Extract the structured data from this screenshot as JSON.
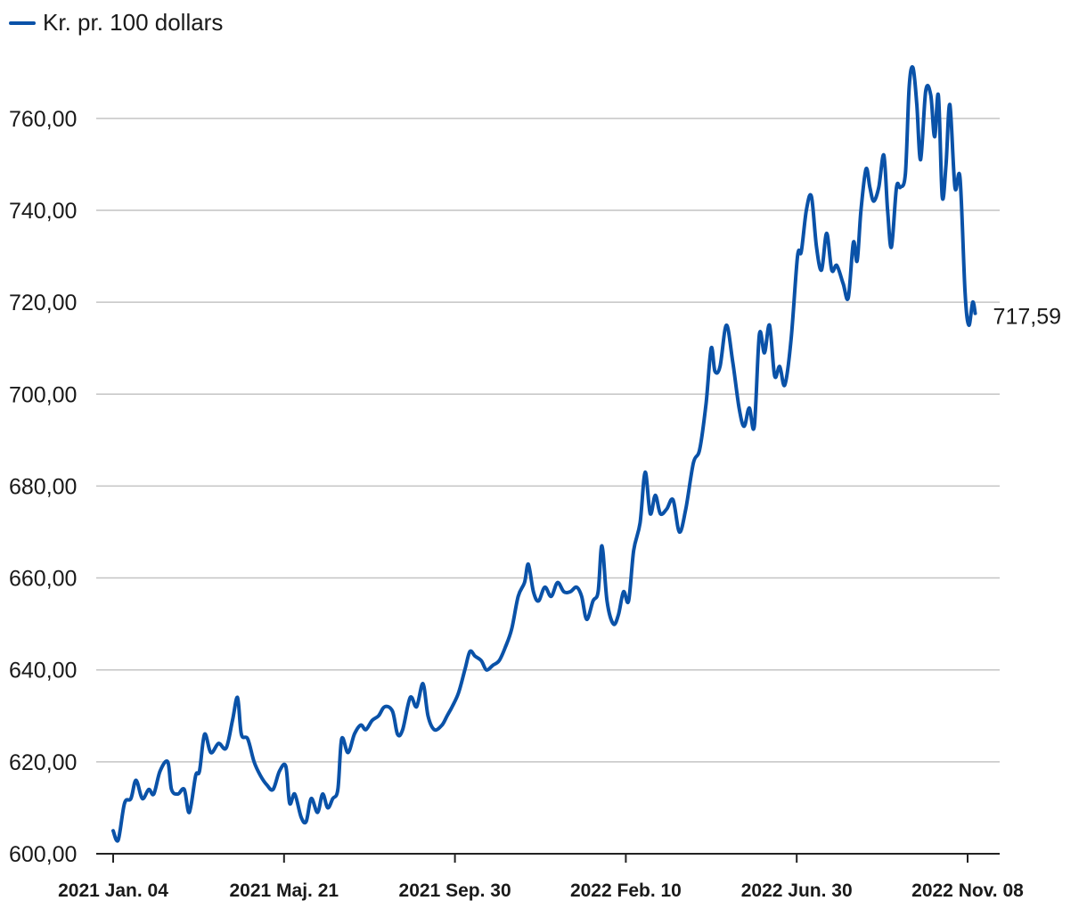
{
  "chart_data": {
    "type": "line",
    "legend": [
      {
        "label": "Kr. pr. 100 dollars",
        "color": "#0a52a8"
      }
    ],
    "legend_placement": "top-left",
    "series": [
      {
        "name": "Kr. pr. 100 dollars",
        "color": "#0a52a8"
      }
    ],
    "x_ticks": [
      "2021 Jan. 04",
      "2021 Maj. 21",
      "2021 Sep. 30",
      "2022 Feb. 10",
      "2022 Jun. 30",
      "2022 Nov. 08"
    ],
    "y_ticks": [
      "600,00",
      "620,00",
      "640,00",
      "660,00",
      "680,00",
      "700,00",
      "720,00",
      "740,00",
      "760,00"
    ],
    "ylim": [
      600,
      778
    ],
    "grid": "horizontal",
    "last_value_label": "717,59",
    "points": [
      [
        "2021-01-04",
        605
      ],
      [
        "2021-01-08",
        603
      ],
      [
        "2021-01-13",
        611
      ],
      [
        "2021-01-18",
        612
      ],
      [
        "2021-01-22",
        616
      ],
      [
        "2021-01-27",
        612
      ],
      [
        "2021-02-01",
        614
      ],
      [
        "2021-02-05",
        613
      ],
      [
        "2021-02-10",
        618
      ],
      [
        "2021-02-16",
        620
      ],
      [
        "2021-02-19",
        614
      ],
      [
        "2021-02-24",
        613
      ],
      [
        "2021-03-01",
        614
      ],
      [
        "2021-03-05",
        609
      ],
      [
        "2021-03-10",
        617
      ],
      [
        "2021-03-13",
        618
      ],
      [
        "2021-03-17",
        626
      ],
      [
        "2021-03-22",
        622
      ],
      [
        "2021-03-28",
        624
      ],
      [
        "2021-04-03",
        623
      ],
      [
        "2021-04-08",
        629
      ],
      [
        "2021-04-12",
        634
      ],
      [
        "2021-04-15",
        626
      ],
      [
        "2021-04-20",
        625
      ],
      [
        "2021-04-25",
        620
      ],
      [
        "2021-04-30",
        617
      ],
      [
        "2021-05-05",
        615
      ],
      [
        "2021-05-10",
        614
      ],
      [
        "2021-05-15",
        618
      ],
      [
        "2021-05-20",
        619
      ],
      [
        "2021-05-23",
        611
      ],
      [
        "2021-05-27",
        613
      ],
      [
        "2021-06-01",
        608
      ],
      [
        "2021-06-05",
        607
      ],
      [
        "2021-06-09",
        612
      ],
      [
        "2021-06-14",
        609
      ],
      [
        "2021-06-18",
        613
      ],
      [
        "2021-06-22",
        610
      ],
      [
        "2021-06-26",
        612
      ],
      [
        "2021-06-30",
        614
      ],
      [
        "2021-07-03",
        625
      ],
      [
        "2021-07-08",
        622
      ],
      [
        "2021-07-13",
        626
      ],
      [
        "2021-07-18",
        628
      ],
      [
        "2021-07-22",
        627
      ],
      [
        "2021-07-27",
        629
      ],
      [
        "2021-08-01",
        630
      ],
      [
        "2021-08-06",
        632
      ],
      [
        "2021-08-12",
        631
      ],
      [
        "2021-08-16",
        626
      ],
      [
        "2021-08-20",
        627
      ],
      [
        "2021-08-26",
        634
      ],
      [
        "2021-08-31",
        632
      ],
      [
        "2021-09-05",
        637
      ],
      [
        "2021-09-09",
        630
      ],
      [
        "2021-09-14",
        627
      ],
      [
        "2021-09-20",
        628
      ],
      [
        "2021-09-24",
        630
      ],
      [
        "2021-09-28",
        632
      ],
      [
        "2021-10-03",
        635
      ],
      [
        "2021-10-08",
        640
      ],
      [
        "2021-10-12",
        644
      ],
      [
        "2021-10-16",
        643
      ],
      [
        "2021-10-21",
        642
      ],
      [
        "2021-10-25",
        640
      ],
      [
        "2021-10-30",
        641
      ],
      [
        "2021-11-04",
        642
      ],
      [
        "2021-11-09",
        645
      ],
      [
        "2021-11-14",
        649
      ],
      [
        "2021-11-19",
        656
      ],
      [
        "2021-11-24",
        659
      ],
      [
        "2021-11-27",
        663
      ],
      [
        "2021-12-01",
        657
      ],
      [
        "2021-12-05",
        655
      ],
      [
        "2021-12-10",
        658
      ],
      [
        "2021-12-15",
        656
      ],
      [
        "2021-12-20",
        659
      ],
      [
        "2021-12-25",
        657
      ],
      [
        "2021-12-30",
        657
      ],
      [
        "2022-01-04",
        658
      ],
      [
        "2022-01-08",
        656
      ],
      [
        "2022-01-12",
        651
      ],
      [
        "2022-01-17",
        655
      ],
      [
        "2022-01-21",
        657
      ],
      [
        "2022-01-24",
        667
      ],
      [
        "2022-01-28",
        655
      ],
      [
        "2022-02-02",
        650
      ],
      [
        "2022-02-06",
        652
      ],
      [
        "2022-02-10",
        657
      ],
      [
        "2022-02-14",
        655
      ],
      [
        "2022-02-18",
        666
      ],
      [
        "2022-02-23",
        672
      ],
      [
        "2022-02-27",
        683
      ],
      [
        "2022-03-03",
        674
      ],
      [
        "2022-03-07",
        678
      ],
      [
        "2022-03-11",
        674
      ],
      [
        "2022-03-16",
        675
      ],
      [
        "2022-03-21",
        677
      ],
      [
        "2022-03-26",
        670
      ],
      [
        "2022-03-31",
        675
      ],
      [
        "2022-04-06",
        685
      ],
      [
        "2022-04-11",
        688
      ],
      [
        "2022-04-16",
        698
      ],
      [
        "2022-04-20",
        710
      ],
      [
        "2022-04-23",
        705
      ],
      [
        "2022-04-27",
        706
      ],
      [
        "2022-05-02",
        715
      ],
      [
        "2022-05-07",
        707
      ],
      [
        "2022-05-12",
        697
      ],
      [
        "2022-05-16",
        693
      ],
      [
        "2022-05-20",
        697
      ],
      [
        "2022-05-24",
        693
      ],
      [
        "2022-05-28",
        713
      ],
      [
        "2022-06-01",
        709
      ],
      [
        "2022-06-05",
        715
      ],
      [
        "2022-06-09",
        704
      ],
      [
        "2022-06-13",
        706
      ],
      [
        "2022-06-17",
        702
      ],
      [
        "2022-06-22",
        712
      ],
      [
        "2022-06-27",
        730
      ],
      [
        "2022-06-30",
        731
      ],
      [
        "2022-07-04",
        740
      ],
      [
        "2022-07-08",
        743
      ],
      [
        "2022-07-12",
        732
      ],
      [
        "2022-07-16",
        727
      ],
      [
        "2022-07-20",
        735
      ],
      [
        "2022-07-24",
        727
      ],
      [
        "2022-07-28",
        728
      ],
      [
        "2022-08-02",
        724
      ],
      [
        "2022-08-06",
        721
      ],
      [
        "2022-08-10",
        733
      ],
      [
        "2022-08-13",
        729
      ],
      [
        "2022-08-16",
        740
      ],
      [
        "2022-08-20",
        749
      ],
      [
        "2022-08-23",
        745
      ],
      [
        "2022-08-26",
        742
      ],
      [
        "2022-08-30",
        745
      ],
      [
        "2022-09-03",
        752
      ],
      [
        "2022-09-06",
        740
      ],
      [
        "2022-09-09",
        732
      ],
      [
        "2022-09-13",
        745
      ],
      [
        "2022-09-16",
        745
      ],
      [
        "2022-09-20",
        748
      ],
      [
        "2022-09-23",
        767
      ],
      [
        "2022-09-26",
        771
      ],
      [
        "2022-09-29",
        763
      ],
      [
        "2022-10-02",
        751
      ],
      [
        "2022-10-06",
        766
      ],
      [
        "2022-10-10",
        765
      ],
      [
        "2022-10-13",
        756
      ],
      [
        "2022-10-16",
        765
      ],
      [
        "2022-10-19",
        743
      ],
      [
        "2022-10-22",
        750
      ],
      [
        "2022-10-25",
        763
      ],
      [
        "2022-10-29",
        745
      ],
      [
        "2022-11-02",
        747
      ],
      [
        "2022-11-06",
        722
      ],
      [
        "2022-11-09",
        715
      ],
      [
        "2022-11-12",
        720
      ],
      [
        "2022-11-14",
        717.59
      ]
    ]
  }
}
